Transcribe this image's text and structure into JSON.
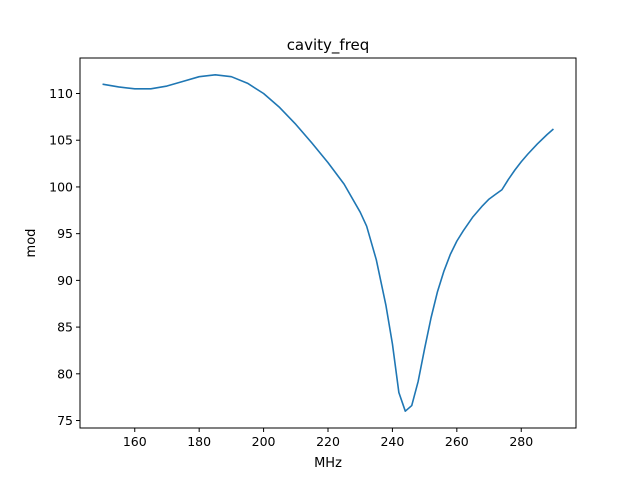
{
  "chart_data": {
    "type": "line",
    "title": "cavity_freq",
    "xlabel": "MHz",
    "ylabel": "mod",
    "xlim": [
      143,
      297
    ],
    "ylim": [
      74.2,
      113.8
    ],
    "xticks": [
      160,
      180,
      200,
      220,
      240,
      260,
      280
    ],
    "yticks": [
      75,
      80,
      85,
      90,
      95,
      100,
      105,
      110
    ],
    "grid": false,
    "legend": "none",
    "series": [
      {
        "color": "#1f77b4",
        "x": [
          150,
          155,
          160,
          165,
          170,
          175,
          180,
          185,
          190,
          195,
          200,
          205,
          210,
          215,
          220,
          225,
          230,
          232,
          235,
          238,
          240,
          242,
          244,
          246,
          248,
          250,
          252,
          254,
          256,
          258,
          260,
          262,
          265,
          268,
          270,
          272,
          274,
          276,
          278,
          280,
          282,
          285,
          288,
          290
        ],
        "y": [
          111.0,
          110.7,
          110.5,
          110.5,
          110.8,
          111.3,
          111.8,
          112.0,
          111.8,
          111.1,
          110.0,
          108.5,
          106.7,
          104.7,
          102.6,
          100.3,
          97.3,
          95.8,
          92.2,
          87.3,
          83.2,
          78.0,
          76.0,
          76.6,
          79.2,
          82.7,
          86.0,
          88.8,
          91.0,
          92.8,
          94.2,
          95.3,
          96.8,
          98.0,
          98.7,
          99.2,
          99.7,
          100.8,
          101.8,
          102.7,
          103.5,
          104.6,
          105.6,
          106.2
        ]
      }
    ]
  }
}
